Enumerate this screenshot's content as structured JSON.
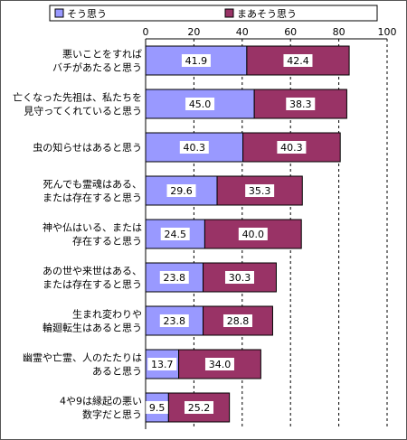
{
  "chart_data": {
    "type": "bar",
    "orientation": "horizontal",
    "stacked": true,
    "categories": [
      [
        "悪いことをすれば",
        "バチがあたると思う"
      ],
      [
        "亡くなった先祖は、私たちを",
        "見守ってくれていると思う"
      ],
      [
        "虫の知らせはあると思う"
      ],
      [
        "死んでも霊魂はある、",
        "または存在すると思う"
      ],
      [
        "神や仏はいる、または",
        "存在すると思う"
      ],
      [
        "あの世や来世はある、",
        "または存在すると思う"
      ],
      [
        "生まれ変わりや",
        "輪廻転生はあると思う"
      ],
      [
        "幽霊や亡霊、人のたたりは",
        "あると思う"
      ],
      [
        "4や9は縁起の悪い",
        "数字だと思う"
      ]
    ],
    "series": [
      {
        "name": "そう思う",
        "color": "#9999ff",
        "values": [
          41.9,
          45.0,
          40.3,
          29.6,
          24.5,
          23.8,
          23.8,
          13.7,
          9.5
        ],
        "labels": [
          "41.9",
          "45.0",
          "40.3",
          "29.6",
          "24.5",
          "23.8",
          "23.8",
          "13.7",
          "9.5"
        ]
      },
      {
        "name": "まあそう思う",
        "color": "#993366",
        "values": [
          42.4,
          38.3,
          40.3,
          35.3,
          40.0,
          30.3,
          28.8,
          34.0,
          25.2
        ],
        "labels": [
          "42.4",
          "38.3",
          "40.3",
          "35.3",
          "40.0",
          "30.3",
          "28.8",
          "34.0",
          "25.2"
        ]
      }
    ],
    "x_ticks": [
      "0",
      "20",
      "40",
      "60",
      "80",
      "100"
    ],
    "xlim": [
      0,
      100
    ],
    "grid": true,
    "grid_style": "dashed",
    "legend_position": "top",
    "title": "",
    "xlabel": "",
    "ylabel": ""
  }
}
